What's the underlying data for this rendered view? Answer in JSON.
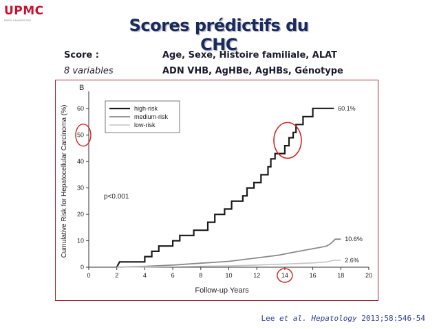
{
  "logo": {
    "text": "UPMC",
    "subtext": "PARIS UNIVERSITAS"
  },
  "title": "Scores prédictifs du CHC",
  "score": {
    "label": "Score :",
    "count": "8 variables",
    "line1": "Age, Sexe, Histoire familiale, ALAT",
    "line2": "ADN VHB, AgHBe, AgHBs, Génotype"
  },
  "citation": {
    "author": "Lee ",
    "etal": "et al.",
    "journal": "Hepatology",
    "ref": " 2013;58:546-54"
  },
  "colors": {
    "high": "#1a1a1a",
    "medium": "#8a8a8a",
    "low": "#c4c4c4",
    "highlight": "#d2231e",
    "title": "#1a2a5c"
  },
  "chart_data": {
    "type": "line",
    "panel_label": "B",
    "xlabel": "Follow-up Years",
    "ylabel": "Cumulative Risk for Hepatocellular Carcinoma (%)",
    "xlim": [
      0,
      20
    ],
    "ylim": [
      0,
      65
    ],
    "xticks": [
      0,
      2,
      4,
      6,
      8,
      10,
      12,
      14,
      16,
      18,
      20
    ],
    "yticks": [
      0,
      10,
      20,
      30,
      40,
      50,
      60
    ],
    "pvalue": "p<0.001",
    "legend_position": "top-left",
    "series": [
      {
        "name": "high-risk",
        "end_label": "60.1%",
        "points": [
          [
            2,
            0
          ],
          [
            2.2,
            2
          ],
          [
            4,
            2
          ],
          [
            4,
            4
          ],
          [
            4.5,
            4
          ],
          [
            4.5,
            6
          ],
          [
            5,
            6
          ],
          [
            5,
            8
          ],
          [
            6,
            8
          ],
          [
            6,
            10
          ],
          [
            6.5,
            10
          ],
          [
            6.5,
            12
          ],
          [
            7.5,
            12
          ],
          [
            7.5,
            14
          ],
          [
            8.5,
            14
          ],
          [
            8.5,
            17
          ],
          [
            9,
            17
          ],
          [
            9,
            20
          ],
          [
            9.7,
            20
          ],
          [
            9.7,
            22
          ],
          [
            10.2,
            22
          ],
          [
            10.2,
            25
          ],
          [
            11,
            25
          ],
          [
            11,
            27
          ],
          [
            11.3,
            27
          ],
          [
            11.3,
            30
          ],
          [
            11.8,
            30
          ],
          [
            11.8,
            32
          ],
          [
            12.3,
            32
          ],
          [
            12.3,
            35
          ],
          [
            12.8,
            35
          ],
          [
            12.8,
            38
          ],
          [
            13,
            38
          ],
          [
            13,
            41
          ],
          [
            13.3,
            41
          ],
          [
            13.3,
            43
          ],
          [
            14,
            43
          ],
          [
            14,
            46
          ],
          [
            14.3,
            46
          ],
          [
            14.3,
            49
          ],
          [
            14.6,
            49
          ],
          [
            14.6,
            51
          ],
          [
            14.8,
            51
          ],
          [
            14.8,
            54
          ],
          [
            15.3,
            54
          ],
          [
            15.3,
            57
          ],
          [
            16,
            57
          ],
          [
            16,
            60.1
          ],
          [
            17.5,
            60.1
          ]
        ]
      },
      {
        "name": "medium-risk",
        "end_label": "10.6%",
        "points": [
          [
            2,
            0
          ],
          [
            4,
            0.3
          ],
          [
            6,
            0.8
          ],
          [
            8,
            1.5
          ],
          [
            10,
            2.2
          ],
          [
            12,
            3.5
          ],
          [
            13.5,
            4.5
          ],
          [
            14.5,
            5.5
          ],
          [
            15.5,
            6.5
          ],
          [
            16.5,
            7.5
          ],
          [
            17,
            8
          ],
          [
            17.3,
            9
          ],
          [
            17.6,
            10.6
          ],
          [
            18,
            10.6
          ]
        ]
      },
      {
        "name": "low-risk",
        "end_label": "2.6%",
        "points": [
          [
            2,
            0
          ],
          [
            6,
            0.2
          ],
          [
            10,
            0.5
          ],
          [
            12,
            0.8
          ],
          [
            14,
            1.2
          ],
          [
            16,
            1.6
          ],
          [
            17,
            2
          ],
          [
            17.5,
            2.6
          ],
          [
            18,
            2.6
          ]
        ]
      }
    ]
  }
}
